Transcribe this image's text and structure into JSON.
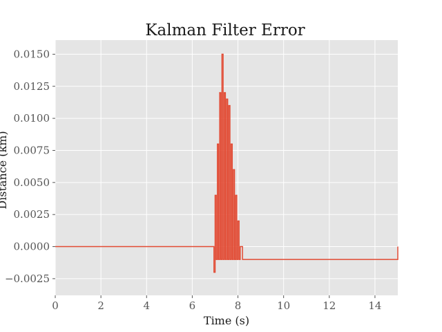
{
  "chart_data": {
    "type": "line",
    "title": "Kalman Filter Error",
    "xlabel": "Time (s)",
    "ylabel": "Distance (km)",
    "xlim": [
      0,
      15
    ],
    "ylim": [
      -0.0038,
      0.0161
    ],
    "xticks": [
      0,
      2,
      4,
      6,
      8,
      10,
      12,
      14
    ],
    "xtick_labels": [
      "0",
      "2",
      "4",
      "6",
      "8",
      "10",
      "12",
      "14"
    ],
    "yticks": [
      -0.0025,
      0.0,
      0.0025,
      0.005,
      0.0075,
      0.01,
      0.0125,
      0.015
    ],
    "ytick_labels": [
      "−0.0025",
      "0.0000",
      "0.0025",
      "0.0050",
      "0.0075",
      "0.0100",
      "0.0125",
      "0.0150"
    ],
    "grid": true,
    "colors": {
      "plot_bg": "#e5e5e5",
      "grid": "#ffffff",
      "line": "#e24a33"
    },
    "series": [
      {
        "x": [
          0,
          6.9,
          6.95,
          7.0,
          7.05,
          7.1,
          7.15,
          7.2,
          7.25,
          7.3,
          7.35,
          7.4,
          7.45,
          7.5,
          7.55,
          7.6,
          7.65,
          7.7,
          7.75,
          7.8,
          7.85,
          7.9,
          7.95,
          8.0,
          8.05,
          8.1,
          8.2,
          8.5,
          8.8,
          9.05,
          9.6,
          9.75,
          9.85,
          10.3,
          10.65,
          10.8,
          10.95,
          15
        ],
        "y": [
          0.0,
          0.0,
          -0.002,
          0.004,
          -0.001,
          0.008,
          -0.001,
          0.012,
          -0.001,
          0.015,
          -0.001,
          0.012,
          -0.001,
          0.0115,
          -0.001,
          0.011,
          -0.001,
          0.008,
          -0.001,
          0.006,
          -0.001,
          0.004,
          -0.001,
          0.002,
          -0.001,
          0.0,
          -0.001,
          -0.001,
          -0.001,
          -0.001,
          -0.001,
          -0.001,
          -0.001,
          -0.001,
          -0.001,
          -0.001,
          -0.001,
          0.0
        ]
      }
    ]
  }
}
